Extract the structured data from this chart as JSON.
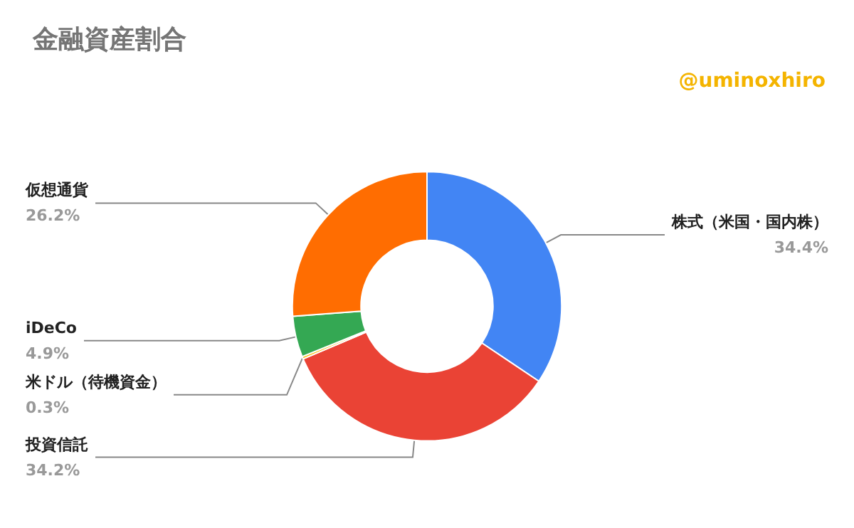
{
  "chart_data": {
    "type": "donut",
    "title": "金融資産割合",
    "annotations": [
      "@uminoxhiro"
    ],
    "categories": [
      "株式（米国・国内株）",
      "投資信託",
      "米ドル（待機資金）",
      "iDeCo",
      "仮想通貨"
    ],
    "values": [
      34.4,
      34.2,
      0.3,
      4.9,
      26.2
    ],
    "value_labels": [
      "34.4%",
      "34.2%",
      "0.3%",
      "4.9%",
      "26.2%"
    ],
    "colors": [
      "#4285f4",
      "#ea4335",
      "#fbbc04",
      "#34a853",
      "#ff6d01"
    ],
    "legend": false
  }
}
